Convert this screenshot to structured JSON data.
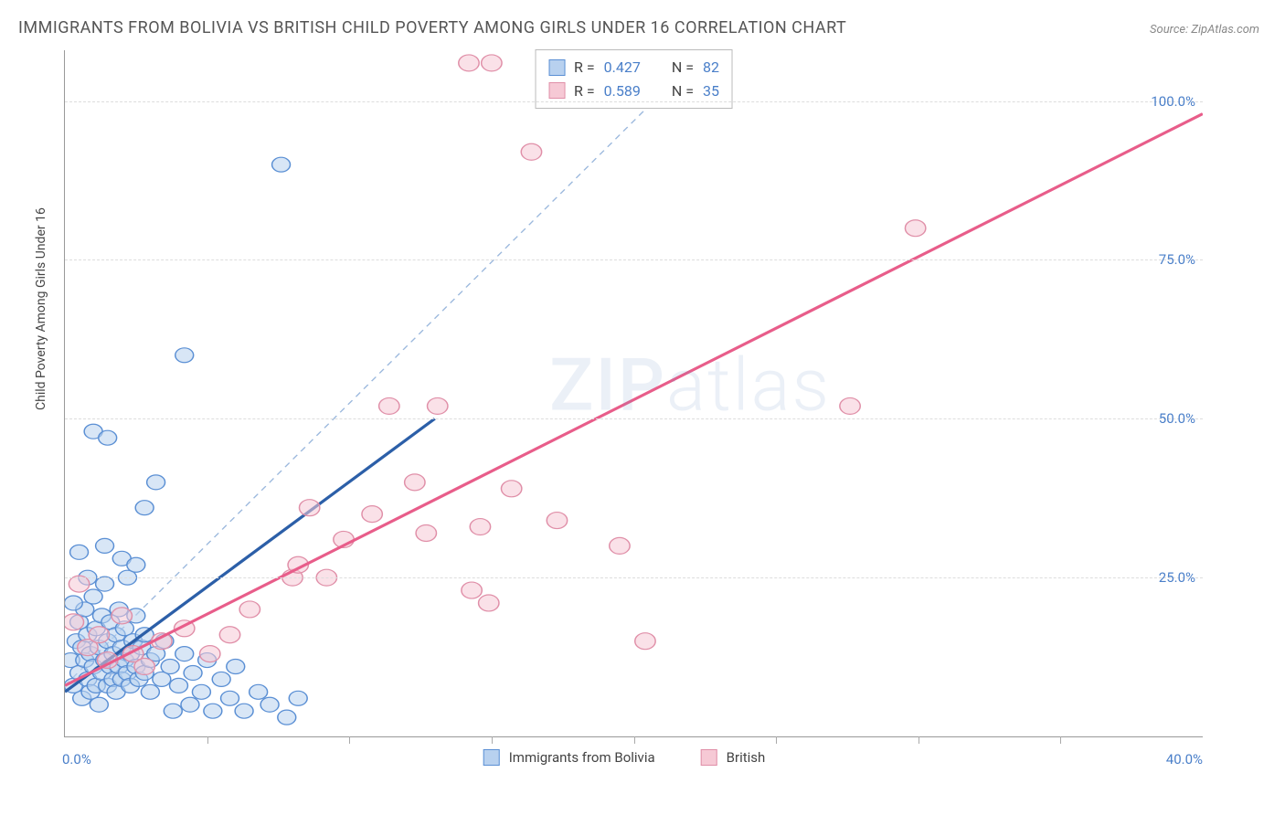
{
  "title": "IMMIGRANTS FROM BOLIVIA VS BRITISH CHILD POVERTY AMONG GIRLS UNDER 16 CORRELATION CHART",
  "source": "Source: ZipAtlas.com",
  "watermark_a": "ZIP",
  "watermark_b": "atlas",
  "chart": {
    "type": "scatter",
    "y_axis_label": "Child Poverty Among Girls Under 16",
    "xlim": [
      0,
      40
    ],
    "ylim": [
      0,
      108
    ],
    "y_ticks": [
      25,
      50,
      75,
      100
    ],
    "y_tick_labels": [
      "25.0%",
      "50.0%",
      "75.0%",
      "100.0%"
    ],
    "x_tick0": "0.0%",
    "x_tick_end": "40.0%",
    "x_minor_ticks": [
      5,
      10,
      15,
      20,
      25,
      30,
      35
    ],
    "background_color": "#ffffff",
    "grid_color": "#dddddd",
    "axis_color": "#999999",
    "diag_line_color": "#9bb8dd",
    "series": {
      "bolivia": {
        "label": "Immigrants from Bolivia",
        "fill": "#b8d1ef",
        "stroke": "#5a8fd4",
        "line_color": "#2c5fa8",
        "marker_r": 8,
        "R": "0.427",
        "N": "82",
        "line": {
          "x1": 0,
          "y1": 7,
          "x2": 13,
          "y2": 50
        },
        "points": [
          [
            0.2,
            12
          ],
          [
            0.3,
            8
          ],
          [
            0.4,
            15
          ],
          [
            0.5,
            10
          ],
          [
            0.5,
            18
          ],
          [
            0.6,
            6
          ],
          [
            0.6,
            14
          ],
          [
            0.7,
            12
          ],
          [
            0.7,
            20
          ],
          [
            0.8,
            9
          ],
          [
            0.8,
            16
          ],
          [
            0.9,
            7
          ],
          [
            0.9,
            13
          ],
          [
            1.0,
            11
          ],
          [
            1.0,
            22
          ],
          [
            1.1,
            8
          ],
          [
            1.1,
            17
          ],
          [
            1.2,
            14
          ],
          [
            1.2,
            5
          ],
          [
            1.3,
            19
          ],
          [
            1.3,
            10
          ],
          [
            1.4,
            12
          ],
          [
            1.4,
            24
          ],
          [
            1.5,
            8
          ],
          [
            1.5,
            15
          ],
          [
            1.6,
            11
          ],
          [
            1.6,
            18
          ],
          [
            1.7,
            9
          ],
          [
            1.7,
            13
          ],
          [
            1.8,
            16
          ],
          [
            1.8,
            7
          ],
          [
            1.9,
            20
          ],
          [
            1.9,
            11
          ],
          [
            2.0,
            14
          ],
          [
            2.0,
            9
          ],
          [
            2.1,
            12
          ],
          [
            2.1,
            17
          ],
          [
            2.2,
            10
          ],
          [
            2.2,
            25
          ],
          [
            2.3,
            13
          ],
          [
            2.3,
            8
          ],
          [
            2.4,
            15
          ],
          [
            2.5,
            11
          ],
          [
            2.5,
            19
          ],
          [
            2.6,
            9
          ],
          [
            2.7,
            14
          ],
          [
            2.8,
            10
          ],
          [
            2.8,
            16
          ],
          [
            3.0,
            12
          ],
          [
            3.0,
            7
          ],
          [
            3.2,
            13
          ],
          [
            3.4,
            9
          ],
          [
            3.5,
            15
          ],
          [
            3.7,
            11
          ],
          [
            3.8,
            4
          ],
          [
            4.0,
            8
          ],
          [
            4.2,
            13
          ],
          [
            4.4,
            5
          ],
          [
            4.5,
            10
          ],
          [
            4.8,
            7
          ],
          [
            5.0,
            12
          ],
          [
            5.2,
            4
          ],
          [
            5.5,
            9
          ],
          [
            5.8,
            6
          ],
          [
            6.0,
            11
          ],
          [
            6.3,
            4
          ],
          [
            6.8,
            7
          ],
          [
            7.2,
            5
          ],
          [
            7.8,
            3
          ],
          [
            8.2,
            6
          ],
          [
            1.0,
            48
          ],
          [
            1.5,
            47
          ],
          [
            2.8,
            36
          ],
          [
            3.2,
            40
          ],
          [
            4.2,
            60
          ],
          [
            0.5,
            29
          ],
          [
            0.8,
            25
          ],
          [
            1.4,
            30
          ],
          [
            2.0,
            28
          ],
          [
            2.5,
            27
          ],
          [
            0.3,
            21
          ],
          [
            7.6,
            90
          ]
        ]
      },
      "british": {
        "label": "British",
        "fill": "#f6c9d5",
        "stroke": "#e08fa8",
        "line_color": "#e85d8a",
        "marker_r": 9,
        "R": "0.589",
        "N": "35",
        "line": {
          "x1": 0,
          "y1": 8,
          "x2": 40,
          "y2": 98
        },
        "points": [
          [
            0.3,
            18
          ],
          [
            0.8,
            14
          ],
          [
            1.2,
            16
          ],
          [
            1.5,
            12
          ],
          [
            2.0,
            19
          ],
          [
            2.4,
            13
          ],
          [
            2.8,
            11
          ],
          [
            3.4,
            15
          ],
          [
            4.2,
            17
          ],
          [
            5.1,
            13
          ],
          [
            5.8,
            16
          ],
          [
            6.5,
            20
          ],
          [
            8.0,
            25
          ],
          [
            8.2,
            27
          ],
          [
            8.6,
            36
          ],
          [
            9.2,
            25
          ],
          [
            9.8,
            31
          ],
          [
            10.8,
            35
          ],
          [
            11.4,
            52
          ],
          [
            12.3,
            40
          ],
          [
            12.7,
            32
          ],
          [
            13.1,
            52
          ],
          [
            14.3,
            23
          ],
          [
            14.6,
            33
          ],
          [
            14.9,
            21
          ],
          [
            15.7,
            39
          ],
          [
            17.3,
            34
          ],
          [
            19.5,
            30
          ],
          [
            20.4,
            15
          ],
          [
            27.6,
            52
          ],
          [
            29.9,
            80
          ],
          [
            14.2,
            106
          ],
          [
            15.0,
            106
          ],
          [
            16.4,
            92
          ],
          [
            0.5,
            24
          ]
        ]
      }
    },
    "stats_labels": {
      "R": "R =",
      "N": "N ="
    }
  }
}
